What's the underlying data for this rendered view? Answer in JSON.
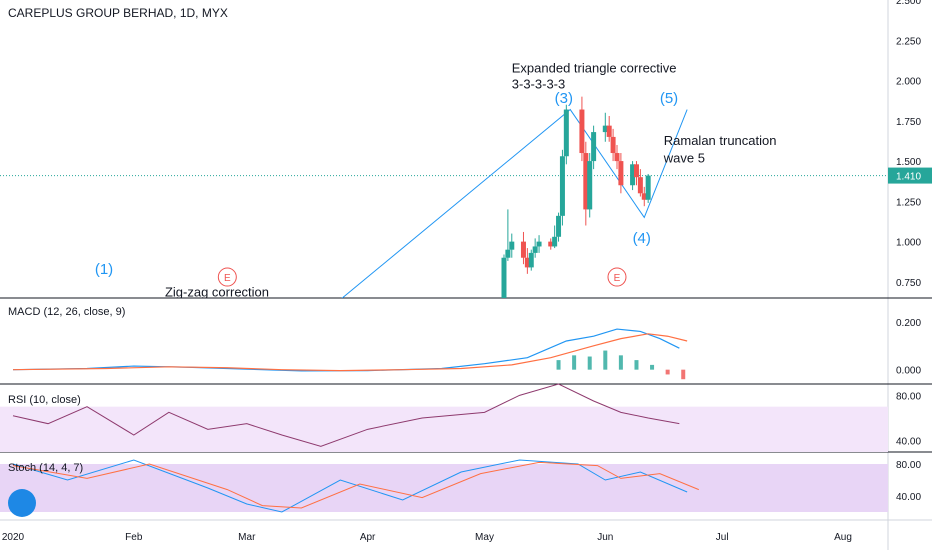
{
  "header": {
    "title": "CAREPLUS GROUP BERHAD, 1D, MYX"
  },
  "colors": {
    "up": "#26a69a",
    "down": "#ef5350",
    "wave": "#2196f3",
    "price_line": "#26a69a",
    "macd": "#2196f3",
    "signal": "#ff7043",
    "rsi": "#8e3a6e",
    "rsi_band": "#f3e5fa",
    "stoch_band": "#e8d5f6",
    "stoch_k": "#2196f3",
    "stoch_d": "#ff7043"
  },
  "chart_data": [
    {
      "type": "candlestick",
      "pane": "price",
      "ylim": [
        0.65,
        2.5
      ],
      "y_ticks": [
        "2.500",
        "2.250",
        "2.000",
        "1.750",
        "1.500",
        "1.250",
        "1.000",
        "0.750"
      ],
      "y_tick_values": [
        2.5,
        2.25,
        2.0,
        1.75,
        1.5,
        1.25,
        1.0,
        0.75
      ],
      "last_price": {
        "label": "1.410",
        "value": 1.41
      },
      "x_labels": [
        "2020",
        "Feb",
        "Mar",
        "Apr",
        "May",
        "Jun",
        "Jul",
        "Aug"
      ],
      "x_label_dates": [
        "2020-01-01",
        "2020-02-01",
        "2020-03-01",
        "2020-04-01",
        "2020-05-01",
        "2020-06-01",
        "2020-07-01",
        "2020-08-01"
      ],
      "candles": [
        {
          "d": "2020-05-06",
          "o": 0.6,
          "h": 0.92,
          "l": 0.6,
          "c": 0.9
        },
        {
          "d": "2020-05-07",
          "o": 0.9,
          "h": 1.2,
          "l": 0.88,
          "c": 0.95
        },
        {
          "d": "2020-05-08",
          "o": 0.95,
          "h": 1.05,
          "l": 0.9,
          "c": 1.0
        },
        {
          "d": "2020-05-11",
          "o": 1.0,
          "h": 1.06,
          "l": 0.86,
          "c": 0.9
        },
        {
          "d": "2020-05-12",
          "o": 0.9,
          "h": 0.96,
          "l": 0.8,
          "c": 0.84
        },
        {
          "d": "2020-05-13",
          "o": 0.84,
          "h": 0.95,
          "l": 0.82,
          "c": 0.93
        },
        {
          "d": "2020-05-14",
          "o": 0.93,
          "h": 1.02,
          "l": 0.9,
          "c": 0.97
        },
        {
          "d": "2020-05-15",
          "o": 0.97,
          "h": 1.04,
          "l": 0.93,
          "c": 1.0
        },
        {
          "d": "2020-05-18",
          "o": 1.0,
          "h": 1.02,
          "l": 0.95,
          "c": 0.97
        },
        {
          "d": "2020-05-19",
          "o": 0.97,
          "h": 1.1,
          "l": 0.96,
          "c": 1.03
        },
        {
          "d": "2020-05-20",
          "o": 1.03,
          "h": 1.18,
          "l": 1.0,
          "c": 1.16
        },
        {
          "d": "2020-05-21",
          "o": 1.16,
          "h": 1.57,
          "l": 1.1,
          "c": 1.53
        },
        {
          "d": "2020-05-22",
          "o": 1.53,
          "h": 1.85,
          "l": 1.48,
          "c": 1.82
        },
        {
          "d": "2020-05-26",
          "o": 1.82,
          "h": 1.9,
          "l": 1.5,
          "c": 1.55
        },
        {
          "d": "2020-05-27",
          "o": 1.55,
          "h": 1.62,
          "l": 1.1,
          "c": 1.2
        },
        {
          "d": "2020-05-28",
          "o": 1.2,
          "h": 1.55,
          "l": 1.15,
          "c": 1.5
        },
        {
          "d": "2020-05-29",
          "o": 1.5,
          "h": 1.72,
          "l": 1.45,
          "c": 1.68
        },
        {
          "d": "2020-06-01",
          "o": 1.68,
          "h": 1.8,
          "l": 1.62,
          "c": 1.72
        },
        {
          "d": "2020-06-02",
          "o": 1.72,
          "h": 1.78,
          "l": 1.62,
          "c": 1.65
        },
        {
          "d": "2020-06-03",
          "o": 1.65,
          "h": 1.7,
          "l": 1.5,
          "c": 1.55
        },
        {
          "d": "2020-06-04",
          "o": 1.55,
          "h": 1.6,
          "l": 1.45,
          "c": 1.5
        },
        {
          "d": "2020-06-05",
          "o": 1.5,
          "h": 1.55,
          "l": 1.3,
          "c": 1.35
        },
        {
          "d": "2020-06-08",
          "o": 1.35,
          "h": 1.5,
          "l": 1.32,
          "c": 1.48
        },
        {
          "d": "2020-06-09",
          "o": 1.48,
          "h": 1.5,
          "l": 1.35,
          "c": 1.4
        },
        {
          "d": "2020-06-10",
          "o": 1.4,
          "h": 1.45,
          "l": 1.28,
          "c": 1.3
        },
        {
          "d": "2020-06-11",
          "o": 1.3,
          "h": 1.34,
          "l": 1.22,
          "c": 1.26
        },
        {
          "d": "2020-06-12",
          "o": 1.26,
          "h": 1.42,
          "l": 1.24,
          "c": 1.41
        }
      ],
      "wave_points": [
        {
          "d": "2020-03-23",
          "v": 0.6
        },
        {
          "d": "2020-05-23",
          "v": 1.82
        },
        {
          "d": "2020-06-11",
          "v": 1.15
        },
        {
          "d": "2020-06-22",
          "v": 1.82
        }
      ],
      "annotations": [
        {
          "text": "Expanded triangle corrective",
          "d": "2020-05-08",
          "v": 2.05
        },
        {
          "text": "3-3-3-3-3",
          "d": "2020-05-08",
          "v": 1.95
        },
        {
          "text": "(3)",
          "d": "2020-05-19",
          "v": 1.86
        },
        {
          "text": "(5)",
          "d": "2020-06-15",
          "v": 1.86
        },
        {
          "text": "Ramalan truncation",
          "d": "2020-06-16",
          "v": 1.6
        },
        {
          "text": "wave 5",
          "d": "2020-06-16",
          "v": 1.49
        },
        {
          "text": "(4)",
          "d": "2020-06-08",
          "v": 0.99
        },
        {
          "text": "(1)",
          "d": "2020-01-22",
          "v": 0.8
        },
        {
          "text": "Zig-zag correction",
          "d": "2020-02-09",
          "v": 0.66
        }
      ],
      "markers": [
        {
          "text": "E",
          "d": "2020-02-25",
          "v": 0.78
        },
        {
          "text": "E",
          "d": "2020-06-04",
          "v": 0.78
        }
      ]
    },
    {
      "type": "macd",
      "pane": "macd",
      "label": "MACD (12, 26, close, 9)",
      "y_ticks": [
        "0.200",
        "0.000"
      ],
      "y_tick_values": [
        0.2,
        0.0
      ],
      "ylim": [
        -0.06,
        0.3
      ],
      "macd": [
        [
          "2020-01-01",
          0.0
        ],
        [
          "2020-01-20",
          0.005
        ],
        [
          "2020-02-01",
          0.015
        ],
        [
          "2020-02-15",
          0.01
        ],
        [
          "2020-03-01",
          0.002
        ],
        [
          "2020-03-15",
          -0.005
        ],
        [
          "2020-04-01",
          -0.004
        ],
        [
          "2020-04-20",
          0.005
        ],
        [
          "2020-05-01",
          0.025
        ],
        [
          "2020-05-12",
          0.05
        ],
        [
          "2020-05-22",
          0.12
        ],
        [
          "2020-05-29",
          0.14
        ],
        [
          "2020-06-04",
          0.17
        ],
        [
          "2020-06-10",
          0.16
        ],
        [
          "2020-06-15",
          0.13
        ],
        [
          "2020-06-20",
          0.09
        ]
      ],
      "signal": [
        [
          "2020-01-01",
          0.0
        ],
        [
          "2020-01-25",
          0.005
        ],
        [
          "2020-02-10",
          0.012
        ],
        [
          "2020-02-25",
          0.008
        ],
        [
          "2020-03-10",
          0.0
        ],
        [
          "2020-03-25",
          -0.004
        ],
        [
          "2020-04-10",
          0.0
        ],
        [
          "2020-04-25",
          0.005
        ],
        [
          "2020-05-08",
          0.02
        ],
        [
          "2020-05-18",
          0.05
        ],
        [
          "2020-05-29",
          0.1
        ],
        [
          "2020-06-05",
          0.13
        ],
        [
          "2020-06-12",
          0.15
        ],
        [
          "2020-06-17",
          0.14
        ],
        [
          "2020-06-22",
          0.12
        ]
      ],
      "histogram": [
        [
          "2020-05-20",
          0.04
        ],
        [
          "2020-05-24",
          0.06
        ],
        [
          "2020-05-28",
          0.055
        ],
        [
          "2020-06-01",
          0.08
        ],
        [
          "2020-06-05",
          0.06
        ],
        [
          "2020-06-09",
          0.04
        ],
        [
          "2020-06-13",
          0.02
        ],
        [
          "2020-06-17",
          -0.02
        ],
        [
          "2020-06-21",
          -0.04
        ]
      ]
    },
    {
      "type": "line",
      "pane": "rsi",
      "label": "RSI (10, close)",
      "y_ticks": [
        "80.00",
        "40.00"
      ],
      "y_tick_values": [
        80,
        40
      ],
      "ylim": [
        30,
        90
      ],
      "band": [
        30,
        70
      ],
      "values": [
        [
          "2020-01-01",
          62
        ],
        [
          "2020-01-10",
          55
        ],
        [
          "2020-01-20",
          70
        ],
        [
          "2020-02-01",
          45
        ],
        [
          "2020-02-10",
          65
        ],
        [
          "2020-02-20",
          50
        ],
        [
          "2020-03-01",
          55
        ],
        [
          "2020-03-10",
          45
        ],
        [
          "2020-03-20",
          35
        ],
        [
          "2020-04-01",
          50
        ],
        [
          "2020-04-15",
          60
        ],
        [
          "2020-05-01",
          65
        ],
        [
          "2020-05-10",
          80
        ],
        [
          "2020-05-20",
          90
        ],
        [
          "2020-05-29",
          75
        ],
        [
          "2020-06-05",
          65
        ],
        [
          "2020-06-12",
          60
        ],
        [
          "2020-06-20",
          55
        ]
      ]
    },
    {
      "type": "line",
      "pane": "stoch",
      "label": "Stoch (14, 4, 7)",
      "y_ticks": [
        "80.00",
        "40.00"
      ],
      "y_tick_values": [
        80,
        40
      ],
      "ylim": [
        10,
        95
      ],
      "band": [
        20,
        80
      ],
      "k": [
        [
          "2020-01-01",
          80
        ],
        [
          "2020-01-15",
          60
        ],
        [
          "2020-02-01",
          85
        ],
        [
          "2020-02-20",
          50
        ],
        [
          "2020-03-01",
          30
        ],
        [
          "2020-03-10",
          20
        ],
        [
          "2020-03-25",
          60
        ],
        [
          "2020-04-10",
          35
        ],
        [
          "2020-04-25",
          70
        ],
        [
          "2020-05-10",
          85
        ],
        [
          "2020-05-25",
          80
        ],
        [
          "2020-06-01",
          60
        ],
        [
          "2020-06-10",
          70
        ],
        [
          "2020-06-22",
          45
        ]
      ],
      "d": [
        [
          "2020-01-01",
          78
        ],
        [
          "2020-01-20",
          62
        ],
        [
          "2020-02-05",
          80
        ],
        [
          "2020-02-25",
          48
        ],
        [
          "2020-03-05",
          28
        ],
        [
          "2020-03-15",
          25
        ],
        [
          "2020-03-30",
          55
        ],
        [
          "2020-04-15",
          38
        ],
        [
          "2020-04-30",
          68
        ],
        [
          "2020-05-15",
          82
        ],
        [
          "2020-05-30",
          78
        ],
        [
          "2020-06-05",
          62
        ],
        [
          "2020-06-15",
          68
        ],
        [
          "2020-06-25",
          48
        ]
      ]
    }
  ]
}
